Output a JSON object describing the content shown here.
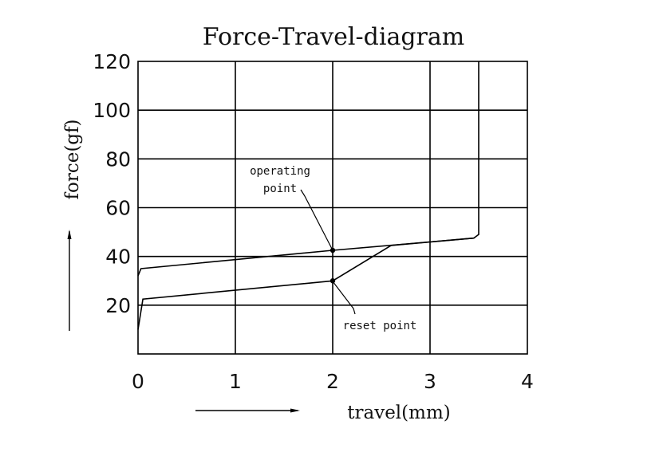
{
  "chart_data": {
    "type": "line",
    "title": "Force-Travel-diagram",
    "xlabel": "travel(mm)",
    "ylabel": "force(gf)",
    "xlim": [
      0,
      4
    ],
    "ylim": [
      0,
      120
    ],
    "x_ticks": [
      "0",
      "1",
      "2",
      "3",
      "4"
    ],
    "y_ticks": [
      "20",
      "40",
      "60",
      "80",
      "100",
      "120"
    ],
    "grid": true,
    "series": [
      {
        "x": [
          0,
          0.03,
          2.0,
          3.45,
          3.5,
          3.5
        ],
        "y": [
          32,
          35,
          42.5,
          47.5,
          49,
          120
        ]
      },
      {
        "x": [
          0,
          0.05,
          2.0,
          2.6,
          3.45
        ],
        "y": [
          10,
          22.5,
          30,
          44.5,
          47.5
        ]
      }
    ],
    "points": [
      {
        "label": "operating point",
        "x": 2.0,
        "y": 42.5
      },
      {
        "label": "reset point",
        "x": 2.0,
        "y": 30
      }
    ],
    "annotations": {
      "operating_line1": "operating",
      "operating_line2": "point",
      "reset": "reset point"
    }
  }
}
